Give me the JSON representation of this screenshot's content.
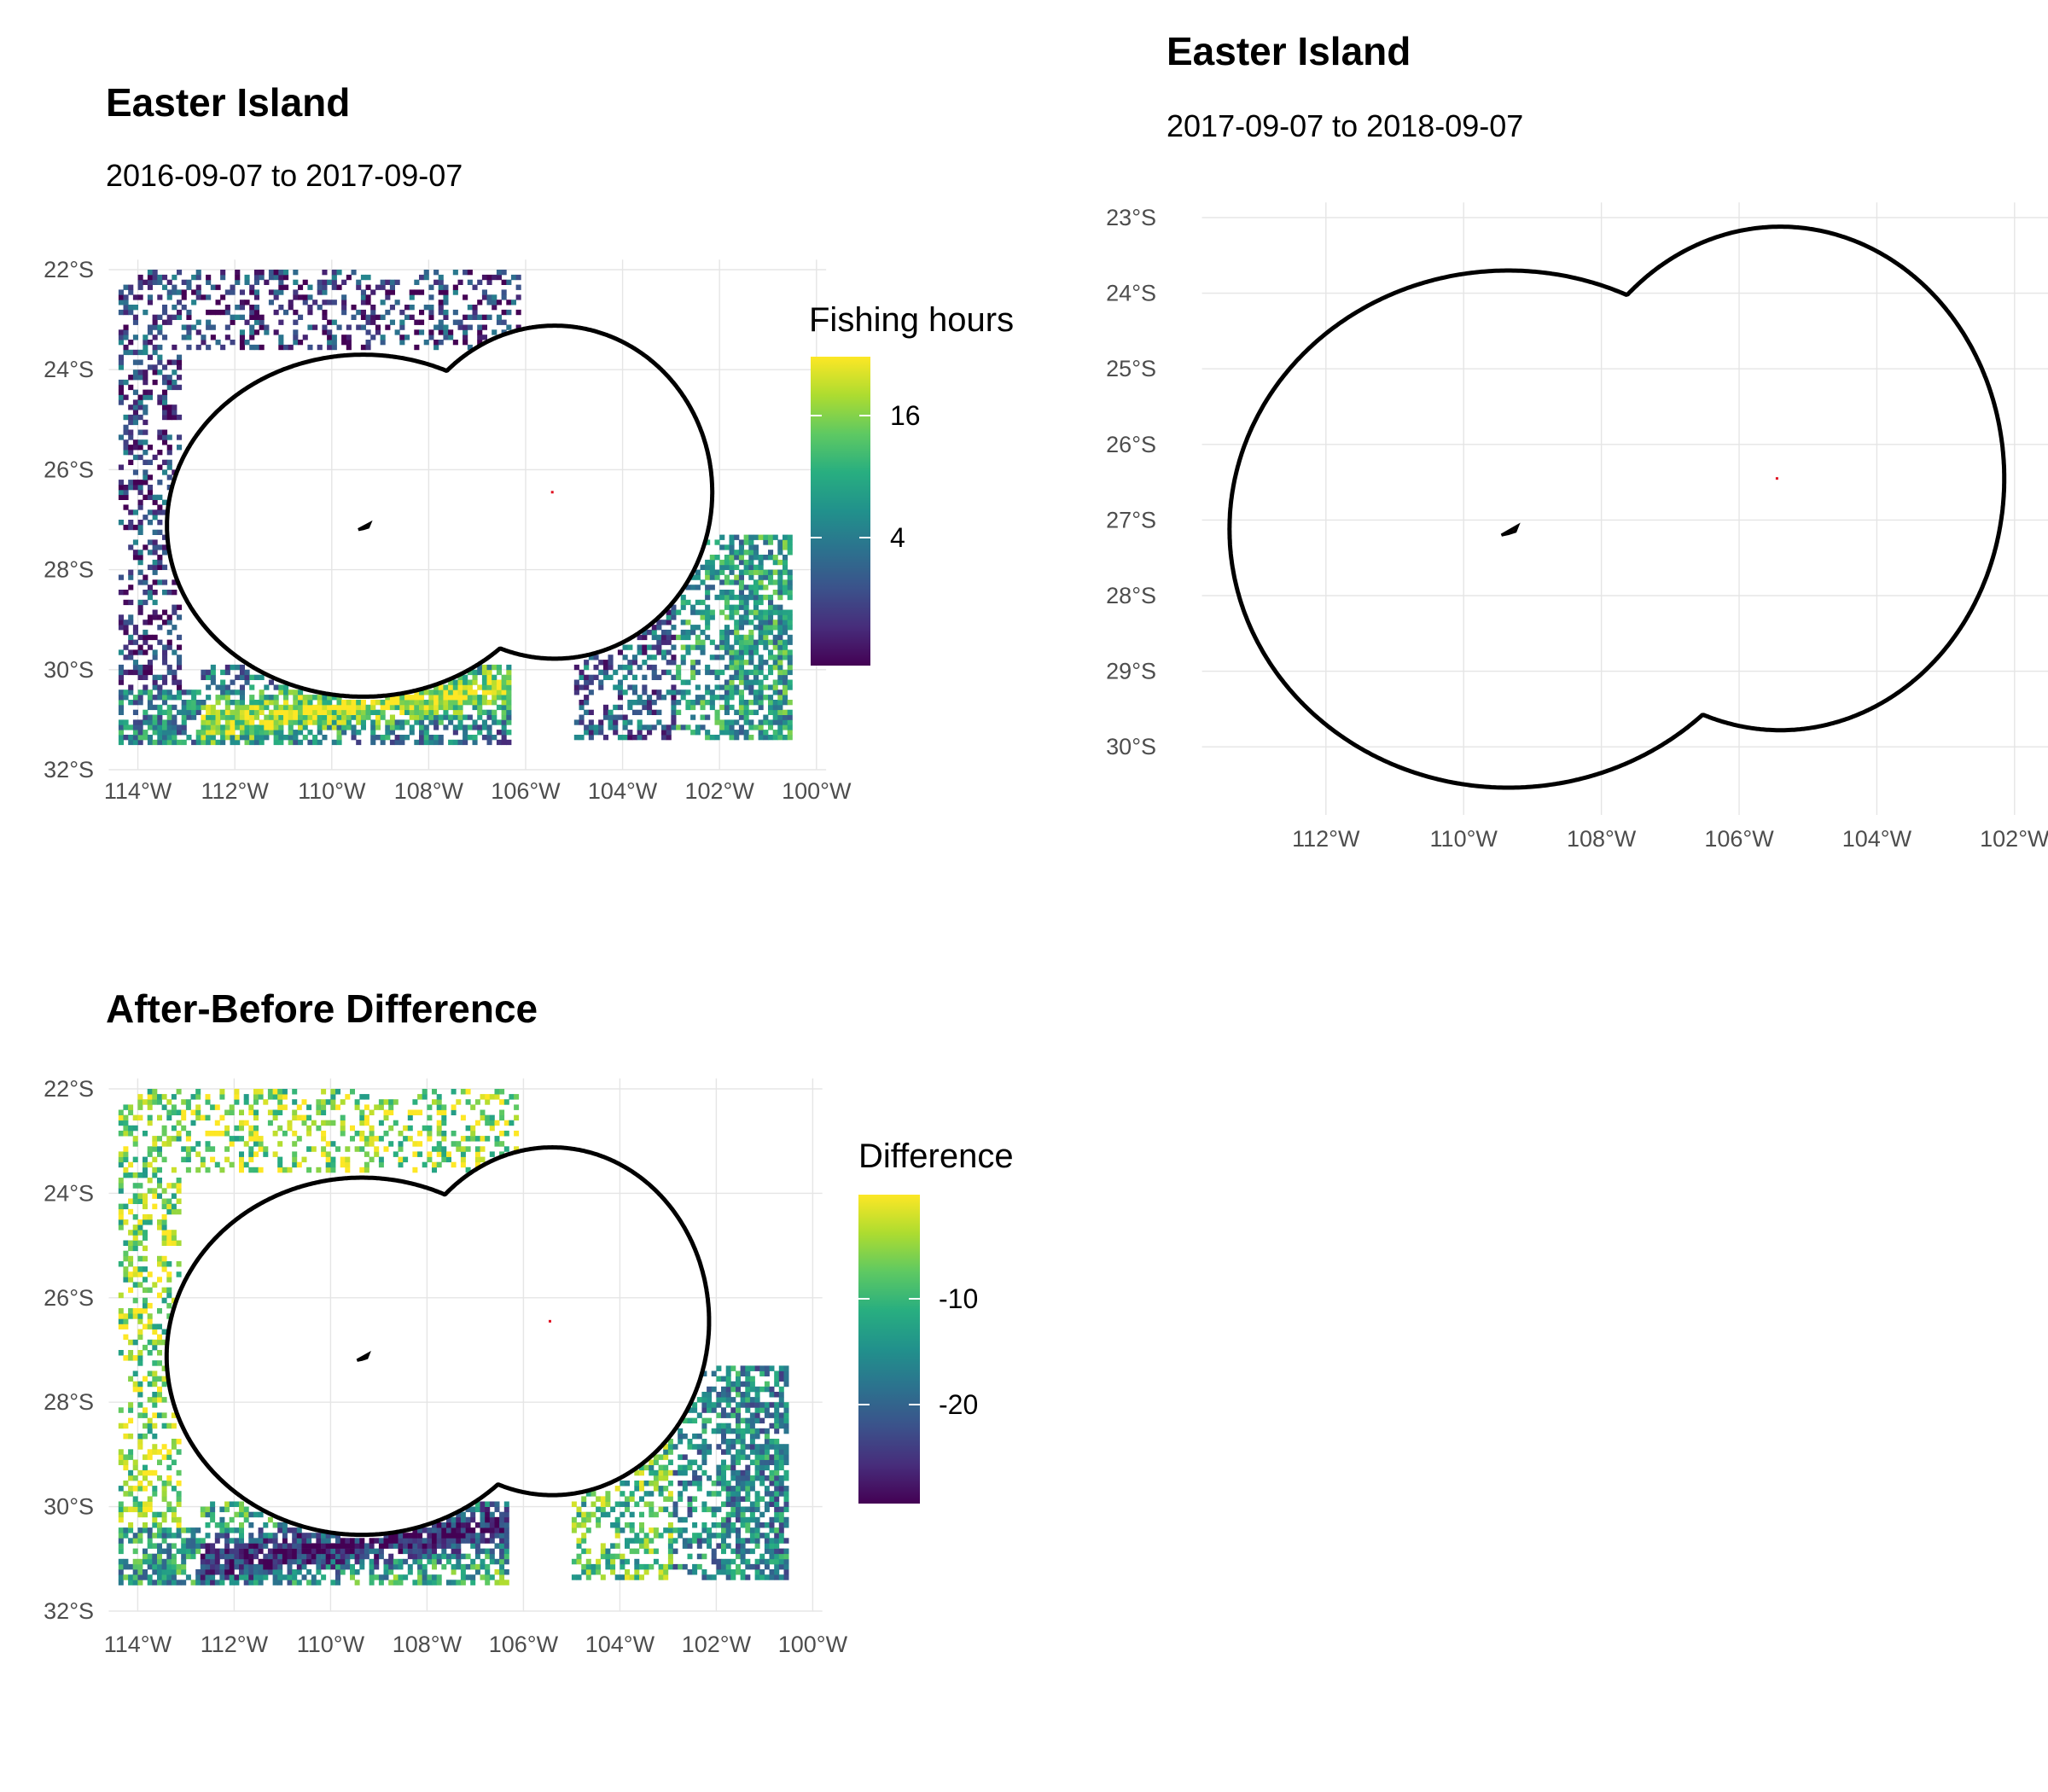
{
  "colors": {
    "viridis": [
      "#440154",
      "#472d7b",
      "#3b528b",
      "#2c728e",
      "#21918c",
      "#28ae80",
      "#5ec962",
      "#addc30",
      "#fde725"
    ],
    "outline": "#000000",
    "grid": "#e5e5e5",
    "island_fill": "#5a1a1a",
    "sala_y_gomez": "#e01020"
  },
  "panels": {
    "before": {
      "title": "Easter Island",
      "subtitle": "2016-09-07 to 2017-09-07",
      "x_ticks": [
        "114°W",
        "112°W",
        "110°W",
        "108°W",
        "106°W",
        "104°W",
        "102°W",
        "100°W"
      ],
      "y_ticks": [
        "22°S",
        "24°S",
        "26°S",
        "28°S",
        "30°S",
        "32°S"
      ],
      "legend": {
        "title": "Fishing hours",
        "labels": [
          "16",
          "4"
        ]
      }
    },
    "after": {
      "title": "Easter Island",
      "subtitle": "2017-09-07 to 2018-09-07",
      "x_ticks": [
        "112°W",
        "110°W",
        "108°W",
        "106°W",
        "104°W",
        "102°W"
      ],
      "y_ticks": [
        "23°S",
        "24°S",
        "25°S",
        "26°S",
        "27°S",
        "28°S",
        "29°S",
        "30°S"
      ]
    },
    "difference": {
      "title": "After-Before Difference",
      "x_ticks": [
        "114°W",
        "112°W",
        "110°W",
        "108°W",
        "106°W",
        "104°W",
        "102°W",
        "100°W"
      ],
      "y_ticks": [
        "22°S",
        "24°S",
        "26°S",
        "28°S",
        "30°S",
        "32°S"
      ],
      "legend": {
        "title": "Difference",
        "labels": [
          "-10",
          "-20"
        ]
      }
    }
  },
  "chart_data": [
    {
      "type": "heatmap",
      "panel": "before",
      "title": "Easter Island",
      "subtitle": "2016-09-07 to 2017-09-07",
      "xlim": [
        -114.6,
        -99.8
      ],
      "ylim": [
        -32,
        -21.8
      ],
      "x_tick_values": [
        -114,
        -112,
        -110,
        -108,
        -106,
        -104,
        -102,
        -100
      ],
      "y_tick_values": [
        -22,
        -24,
        -26,
        -28,
        -30,
        -32
      ],
      "legend": {
        "title": "Fishing hours",
        "ticks": [
          16,
          4
        ],
        "range": [
          0,
          21
        ],
        "scale": "sqrt"
      },
      "cell_size_deg": 0.1,
      "eez_boundary": "Easter Island and Sala y Gómez EEZ outline",
      "fishing_regions": [
        {
          "lon": [
            -114.5,
            -113.0
          ],
          "lat": [
            -31.6,
            -22.1
          ],
          "level": "low"
        },
        {
          "lon": [
            -112.5,
            -106.5
          ],
          "lat": [
            -31.6,
            -30.0
          ],
          "level": "high"
        },
        {
          "lon": [
            -112.0,
            -107.0
          ],
          "lat": [
            -23.6,
            -22.0
          ],
          "level": "low"
        },
        {
          "lon": [
            -105.0,
            -100.5
          ],
          "lat": [
            -31.5,
            -27.3
          ],
          "level": "medium"
        }
      ]
    },
    {
      "type": "heatmap",
      "panel": "after",
      "title": "Easter Island",
      "subtitle": "2017-09-07 to 2018-09-07",
      "xlim": [
        -113.8,
        -101.0
      ],
      "ylim": [
        -30.9,
        -22.8
      ],
      "x_tick_values": [
        -112,
        -110,
        -108,
        -106,
        -104,
        -102
      ],
      "y_tick_values": [
        -23,
        -24,
        -25,
        -26,
        -27,
        -28,
        -29,
        -30
      ],
      "fishing_regions": [],
      "eez_boundary": "Easter Island and Sala y Gómez EEZ outline"
    },
    {
      "type": "heatmap",
      "panel": "difference",
      "title": "After-Before Difference",
      "xlim": [
        -114.6,
        -99.8
      ],
      "ylim": [
        -32,
        -21.8
      ],
      "x_tick_values": [
        -114,
        -112,
        -110,
        -108,
        -106,
        -104,
        -102,
        -100
      ],
      "y_tick_values": [
        -22,
        -24,
        -26,
        -28,
        -30,
        -32
      ],
      "legend": {
        "title": "Difference",
        "ticks": [
          -10,
          -20
        ],
        "range": [
          -29,
          0
        ]
      },
      "cell_size_deg": 0.1,
      "eez_boundary": "Easter Island and Sala y Gómez EEZ outline"
    }
  ]
}
